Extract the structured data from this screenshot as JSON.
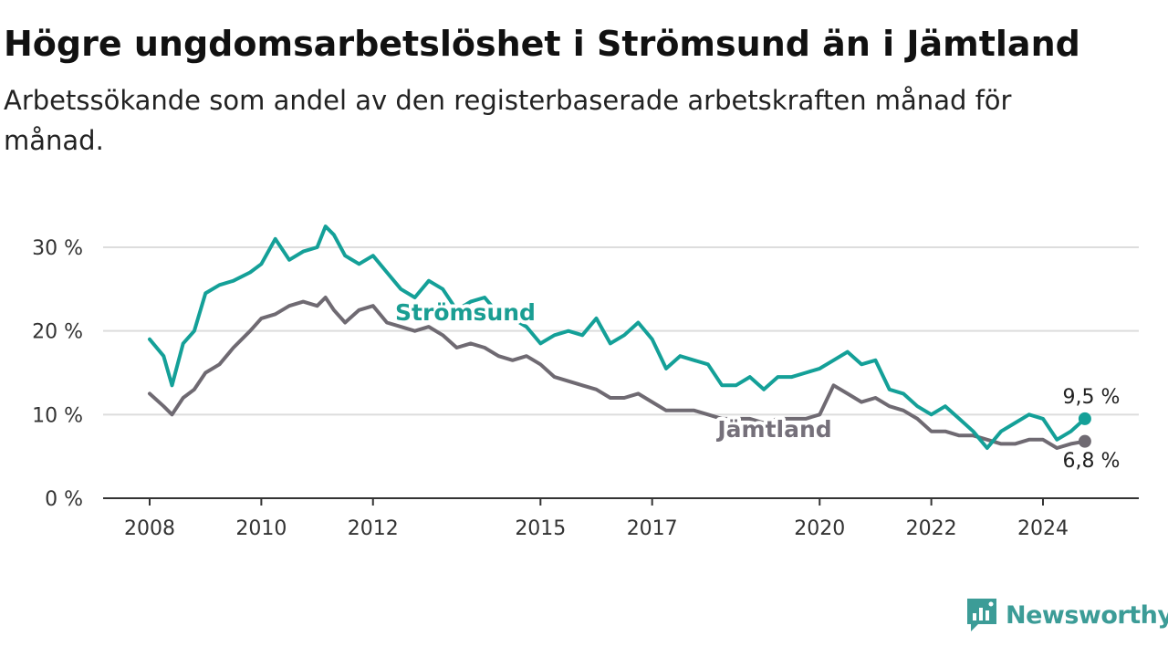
{
  "header": {
    "title": "Högre ungdomsarbetslöshet i Strömsund än i Jämtland",
    "subtitle": "Arbetssökande som andel av den registerbaserade arbetskraften månad för månad."
  },
  "logo": {
    "text": "Newsworthy",
    "icon": "newsworthy-chart-icon",
    "color": "#3c9c97"
  },
  "chart_data": {
    "type": "line",
    "title": "Högre ungdomsarbetslöshet i Strömsund än i Jämtland",
    "subtitle": "Arbetssökande som andel av den registerbaserade arbetskraften månad för månad.",
    "xlabel": "",
    "ylabel": "",
    "x_ticks": [
      {
        "year": 2008,
        "label": "2008"
      },
      {
        "year": 2010,
        "label": "2010"
      },
      {
        "year": 2012,
        "label": "2012"
      },
      {
        "year": 2015,
        "label": "2015"
      },
      {
        "year": 2017,
        "label": "2017"
      },
      {
        "year": 2020,
        "label": "2020"
      },
      {
        "year": 2022,
        "label": "2022"
      },
      {
        "year": 2024,
        "label": "2024"
      }
    ],
    "xlim": [
      2008,
      2025
    ],
    "y_ticks": [
      {
        "value": 0,
        "label": "0 %"
      },
      {
        "value": 10,
        "label": "10 %"
      },
      {
        "value": 20,
        "label": "20 %"
      },
      {
        "value": 30,
        "label": "30 %"
      }
    ],
    "ylim": [
      0,
      34
    ],
    "grid": "horizontal",
    "legend": "direct labels on lines",
    "series": [
      {
        "name": "Strömsund",
        "color": "#14a098",
        "label_color": "#1a9e93",
        "end_label": "9,5 %",
        "x": [
          2008.0,
          2008.25,
          2008.4,
          2008.6,
          2008.8,
          2009.0,
          2009.25,
          2009.5,
          2009.8,
          2010.0,
          2010.25,
          2010.5,
          2010.75,
          2011.0,
          2011.15,
          2011.3,
          2011.5,
          2011.75,
          2012.0,
          2012.25,
          2012.5,
          2012.75,
          2013.0,
          2013.25,
          2013.5,
          2013.75,
          2014.0,
          2014.25,
          2014.5,
          2014.75,
          2015.0,
          2015.25,
          2015.5,
          2015.75,
          2016.0,
          2016.25,
          2016.5,
          2016.75,
          2017.0,
          2017.25,
          2017.5,
          2017.75,
          2018.0,
          2018.25,
          2018.5,
          2018.75,
          2019.0,
          2019.25,
          2019.5,
          2019.75,
          2020.0,
          2020.25,
          2020.5,
          2020.75,
          2021.0,
          2021.25,
          2021.5,
          2021.75,
          2022.0,
          2022.25,
          2022.5,
          2022.75,
          2023.0,
          2023.25,
          2023.5,
          2023.75,
          2024.0,
          2024.25,
          2024.5,
          2024.75
        ],
        "values": [
          19.0,
          17.0,
          13.5,
          18.5,
          20.0,
          24.5,
          25.5,
          26.0,
          27.0,
          28.0,
          31.0,
          28.5,
          29.5,
          30.0,
          32.5,
          31.5,
          29.0,
          28.0,
          29.0,
          27.0,
          25.0,
          24.0,
          26.0,
          25.0,
          22.5,
          23.5,
          24.0,
          22.0,
          21.5,
          20.5,
          18.5,
          19.5,
          20.0,
          19.5,
          21.5,
          18.5,
          19.5,
          21.0,
          19.0,
          15.5,
          17.0,
          16.5,
          16.0,
          13.5,
          13.5,
          14.5,
          13.0,
          14.5,
          14.5,
          15.0,
          15.5,
          16.5,
          17.5,
          16.0,
          16.5,
          13.0,
          12.5,
          11.0,
          10.0,
          11.0,
          9.5,
          8.0,
          6.0,
          8.0,
          9.0,
          10.0,
          9.5,
          7.0,
          8.0,
          9.5
        ]
      },
      {
        "name": "Jämtland",
        "color": "#6f6a72",
        "label_color": "#75707a",
        "end_label": "6,8 %",
        "x": [
          2008.0,
          2008.25,
          2008.4,
          2008.6,
          2008.8,
          2009.0,
          2009.25,
          2009.5,
          2009.8,
          2010.0,
          2010.25,
          2010.5,
          2010.75,
          2011.0,
          2011.15,
          2011.3,
          2011.5,
          2011.75,
          2012.0,
          2012.25,
          2012.5,
          2012.75,
          2013.0,
          2013.25,
          2013.5,
          2013.75,
          2014.0,
          2014.25,
          2014.5,
          2014.75,
          2015.0,
          2015.25,
          2015.5,
          2015.75,
          2016.0,
          2016.25,
          2016.5,
          2016.75,
          2017.0,
          2017.25,
          2017.5,
          2017.75,
          2018.0,
          2018.25,
          2018.5,
          2018.75,
          2019.0,
          2019.25,
          2019.5,
          2019.75,
          2020.0,
          2020.25,
          2020.5,
          2020.75,
          2021.0,
          2021.25,
          2021.5,
          2021.75,
          2022.0,
          2022.25,
          2022.5,
          2022.75,
          2023.0,
          2023.25,
          2023.5,
          2023.75,
          2024.0,
          2024.25,
          2024.5,
          2024.75
        ],
        "values": [
          12.5,
          11.0,
          10.0,
          12.0,
          13.0,
          15.0,
          16.0,
          18.0,
          20.0,
          21.5,
          22.0,
          23.0,
          23.5,
          23.0,
          24.0,
          22.5,
          21.0,
          22.5,
          23.0,
          21.0,
          20.5,
          20.0,
          20.5,
          19.5,
          18.0,
          18.5,
          18.0,
          17.0,
          16.5,
          17.0,
          16.0,
          14.5,
          14.0,
          13.5,
          13.0,
          12.0,
          12.0,
          12.5,
          11.5,
          10.5,
          10.5,
          10.5,
          10.0,
          9.5,
          9.5,
          9.5,
          9.0,
          9.5,
          9.5,
          9.5,
          10.0,
          13.5,
          12.5,
          11.5,
          12.0,
          11.0,
          10.5,
          9.5,
          8.0,
          8.0,
          7.5,
          7.5,
          7.0,
          6.5,
          6.5,
          7.0,
          7.0,
          6.0,
          6.5,
          6.8
        ]
      }
    ]
  }
}
